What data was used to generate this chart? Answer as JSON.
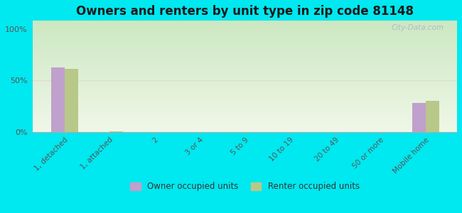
{
  "title": "Owners and renters by unit type in zip code 81148",
  "categories": [
    "1, detached",
    "1, attached",
    "2",
    "3 or 4",
    "5 to 9",
    "10 to 19",
    "20 to 49",
    "50 or more",
    "Mobile home"
  ],
  "owner_values": [
    63,
    0,
    0,
    0,
    0,
    0,
    0,
    0,
    28
  ],
  "renter_values": [
    61,
    1,
    0,
    0,
    0,
    0,
    0,
    0,
    30
  ],
  "owner_color": "#c0a0cc",
  "renter_color": "#b8c888",
  "background_outer": "#00e8f0",
  "yticks": [
    0,
    50,
    100
  ],
  "ylim": [
    0,
    100
  ],
  "bar_width": 0.3,
  "legend_owner": "Owner occupied units",
  "legend_renter": "Renter occupied units",
  "watermark": "City-Data.com",
  "gradient_top_color": "#c8e8c8",
  "gradient_bottom_color": "#eef5e8"
}
